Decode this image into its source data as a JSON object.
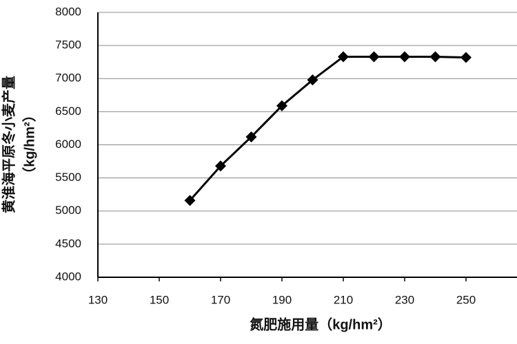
{
  "chart_data": {
    "type": "line",
    "x_label": "氮肥施用量（kg/hm²）",
    "y_label": [
      "黄淮海平原冬小麦产量",
      "（kg/hm²）"
    ],
    "x": [
      160,
      170,
      180,
      190,
      200,
      210,
      220,
      230,
      240,
      250
    ],
    "values": [
      5160,
      5680,
      6120,
      6590,
      6980,
      7330,
      7330,
      7330,
      7330,
      7320
    ],
    "color": "#000000",
    "marker": "diamond",
    "xlim": [
      130,
      270
    ],
    "xticks": [
      130,
      150,
      170,
      190,
      210,
      230,
      250
    ],
    "ylim": [
      4000,
      8000
    ],
    "yticks": [
      4000,
      4500,
      5000,
      5500,
      6000,
      6500,
      7000,
      7500,
      8000
    ],
    "grid": true
  }
}
